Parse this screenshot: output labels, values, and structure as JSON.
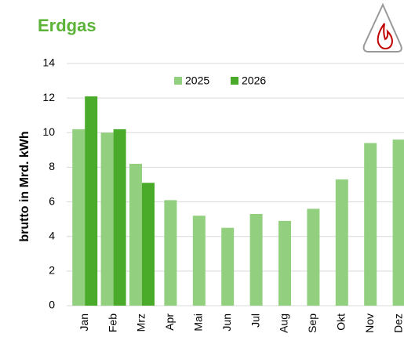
{
  "chart_data": {
    "type": "bar",
    "title": "Erdgas",
    "y_label": "brutto in  Mrd. kWh",
    "categories": [
      "Jan",
      "Feb",
      "Mrz",
      "Apr",
      "Mai",
      "Jun",
      "Jul",
      "Aug",
      "Sep",
      "Okt",
      "Nov",
      "Dez"
    ],
    "series": [
      {
        "name": "2025",
        "color": "#92d07f",
        "values": [
          10.2,
          10.0,
          8.2,
          6.1,
          5.2,
          4.5,
          5.3,
          4.9,
          5.6,
          7.3,
          9.4,
          9.6
        ]
      },
      {
        "name": "2026",
        "color": "#4aaa2a",
        "values": [
          12.1,
          10.2,
          7.1,
          null,
          null,
          null,
          null,
          null,
          null,
          null,
          null,
          null
        ]
      }
    ],
    "ylim": [
      0,
      14
    ],
    "yticks": [
      0,
      2,
      4,
      6,
      8,
      10,
      12,
      14
    ],
    "grid": true,
    "legend": "top"
  }
}
